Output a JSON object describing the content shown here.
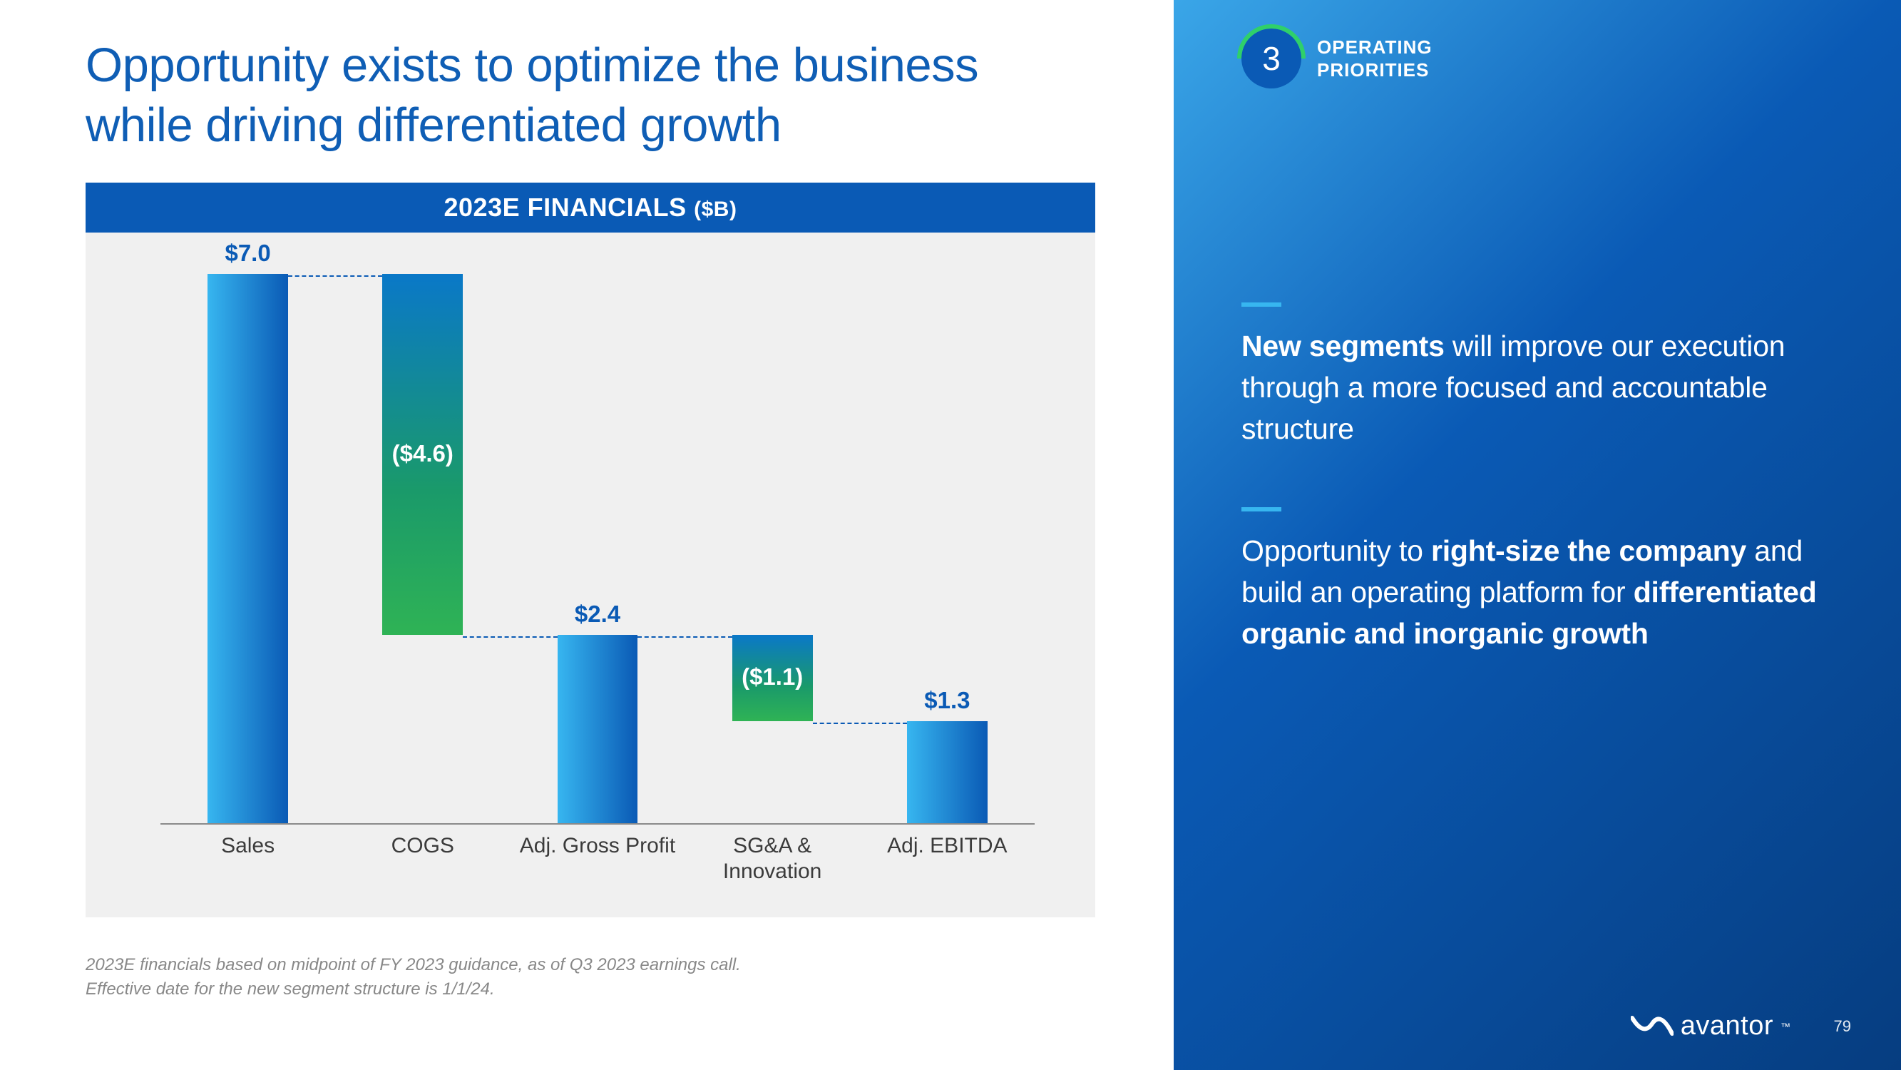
{
  "headline": "Opportunity exists to optimize the business while driving differentiated growth",
  "chart": {
    "title_main": "2023E FINANCIALS",
    "title_unit": "($B)",
    "type": "waterfall",
    "background_color": "#f0f0f0",
    "header_bg": "#0a5ab5",
    "header_text_color": "#ffffff",
    "pos_gradient": [
      "#37b6f0",
      "#0a5ab5"
    ],
    "neg_gradient": [
      "#0a78c8",
      "#2fb355"
    ],
    "label_color": "#0a5ab5",
    "gridline_color": "#8a8a8a",
    "connector_color": "#0a5ab5",
    "ymax": 7.0,
    "bar_width_ratio": 0.46,
    "bars": [
      {
        "category": "Sales",
        "value": 7.0,
        "label": "$7.0",
        "kind": "pos",
        "label_pos": "above",
        "start": 0.0,
        "end": 7.0
      },
      {
        "category": "COGS",
        "value": -4.6,
        "label": "($4.6)",
        "kind": "neg",
        "label_pos": "inside",
        "start": 7.0,
        "end": 2.4
      },
      {
        "category": "Adj. Gross Profit",
        "value": 2.4,
        "label": "$2.4",
        "kind": "pos",
        "label_pos": "above",
        "start": 0.0,
        "end": 2.4
      },
      {
        "category": "SG&A & Innovation",
        "value": -1.1,
        "label": "($1.1)",
        "kind": "neg",
        "label_pos": "inside",
        "start": 2.4,
        "end": 1.3,
        "cat_line1": "SG&A &",
        "cat_line2": "Innovation"
      },
      {
        "category": "Adj. EBITDA",
        "value": 1.3,
        "label": "$1.3",
        "kind": "pos",
        "label_pos": "above",
        "start": 0.0,
        "end": 1.3
      }
    ]
  },
  "footnote_line1": "2023E financials based on midpoint of FY 2023 guidance, as of Q3 2023 earnings call.",
  "footnote_line2": "Effective date for the new segment structure is 1/1/24.",
  "priority": {
    "number": "3",
    "label_line1": "OPERATING",
    "label_line2": "PRIORITIES"
  },
  "body_blocks": [
    {
      "html": "<b>New segments</b> will improve our execution through a more focused and accountable structure"
    },
    {
      "html": "Opportunity to <b>right-size the company</b> and build an operating platform for <b>differentiated organic and inorganic growth</b>"
    }
  ],
  "logo_text": "avantor",
  "page_number": "79",
  "colors": {
    "headline": "#0f5eb5",
    "right_bg_from": "#3aa6e8",
    "right_bg_to": "#063d80",
    "tick": "#37b6f0",
    "footnote": "#888888"
  }
}
